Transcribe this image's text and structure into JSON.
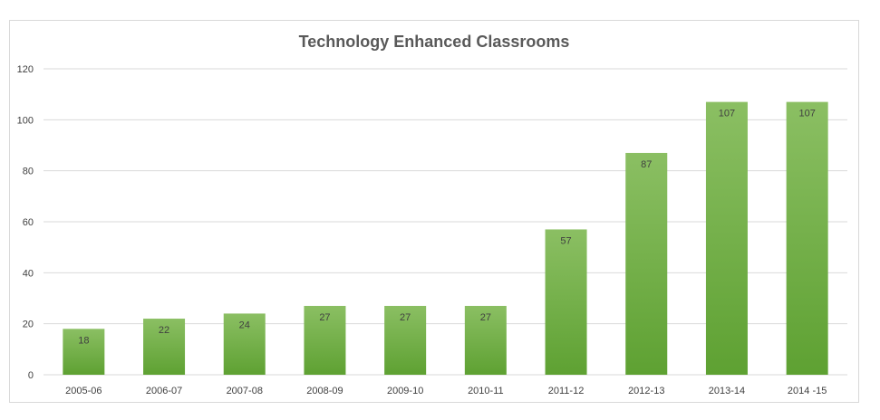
{
  "chart_data": {
    "type": "bar",
    "title": "Technology Enhanced Classrooms",
    "categories": [
      "2005-06",
      "2006-07",
      "2007-08",
      "2008-09",
      "2009-10",
      "2010-11",
      "2011-12",
      "2012-13",
      "2013-14",
      "2014 -15"
    ],
    "values": [
      18,
      22,
      24,
      27,
      27,
      27,
      57,
      87,
      107,
      107
    ],
    "data_labels": [
      "18",
      "22",
      "24",
      "27",
      "27",
      "27",
      "57",
      "87",
      "107",
      "107"
    ],
    "ylim": [
      0,
      120
    ],
    "yticks": [
      0,
      20,
      40,
      60,
      80,
      100,
      120
    ],
    "ytick_labels": [
      "0",
      "20",
      "40",
      "60",
      "80",
      "100",
      "120"
    ],
    "grid": true,
    "legend": "none",
    "colors": {
      "bar_top": "#8bbf63",
      "bar_bottom": "#5ea132",
      "grid": "#d9d9d9",
      "text": "#404040",
      "title": "#595959"
    }
  }
}
